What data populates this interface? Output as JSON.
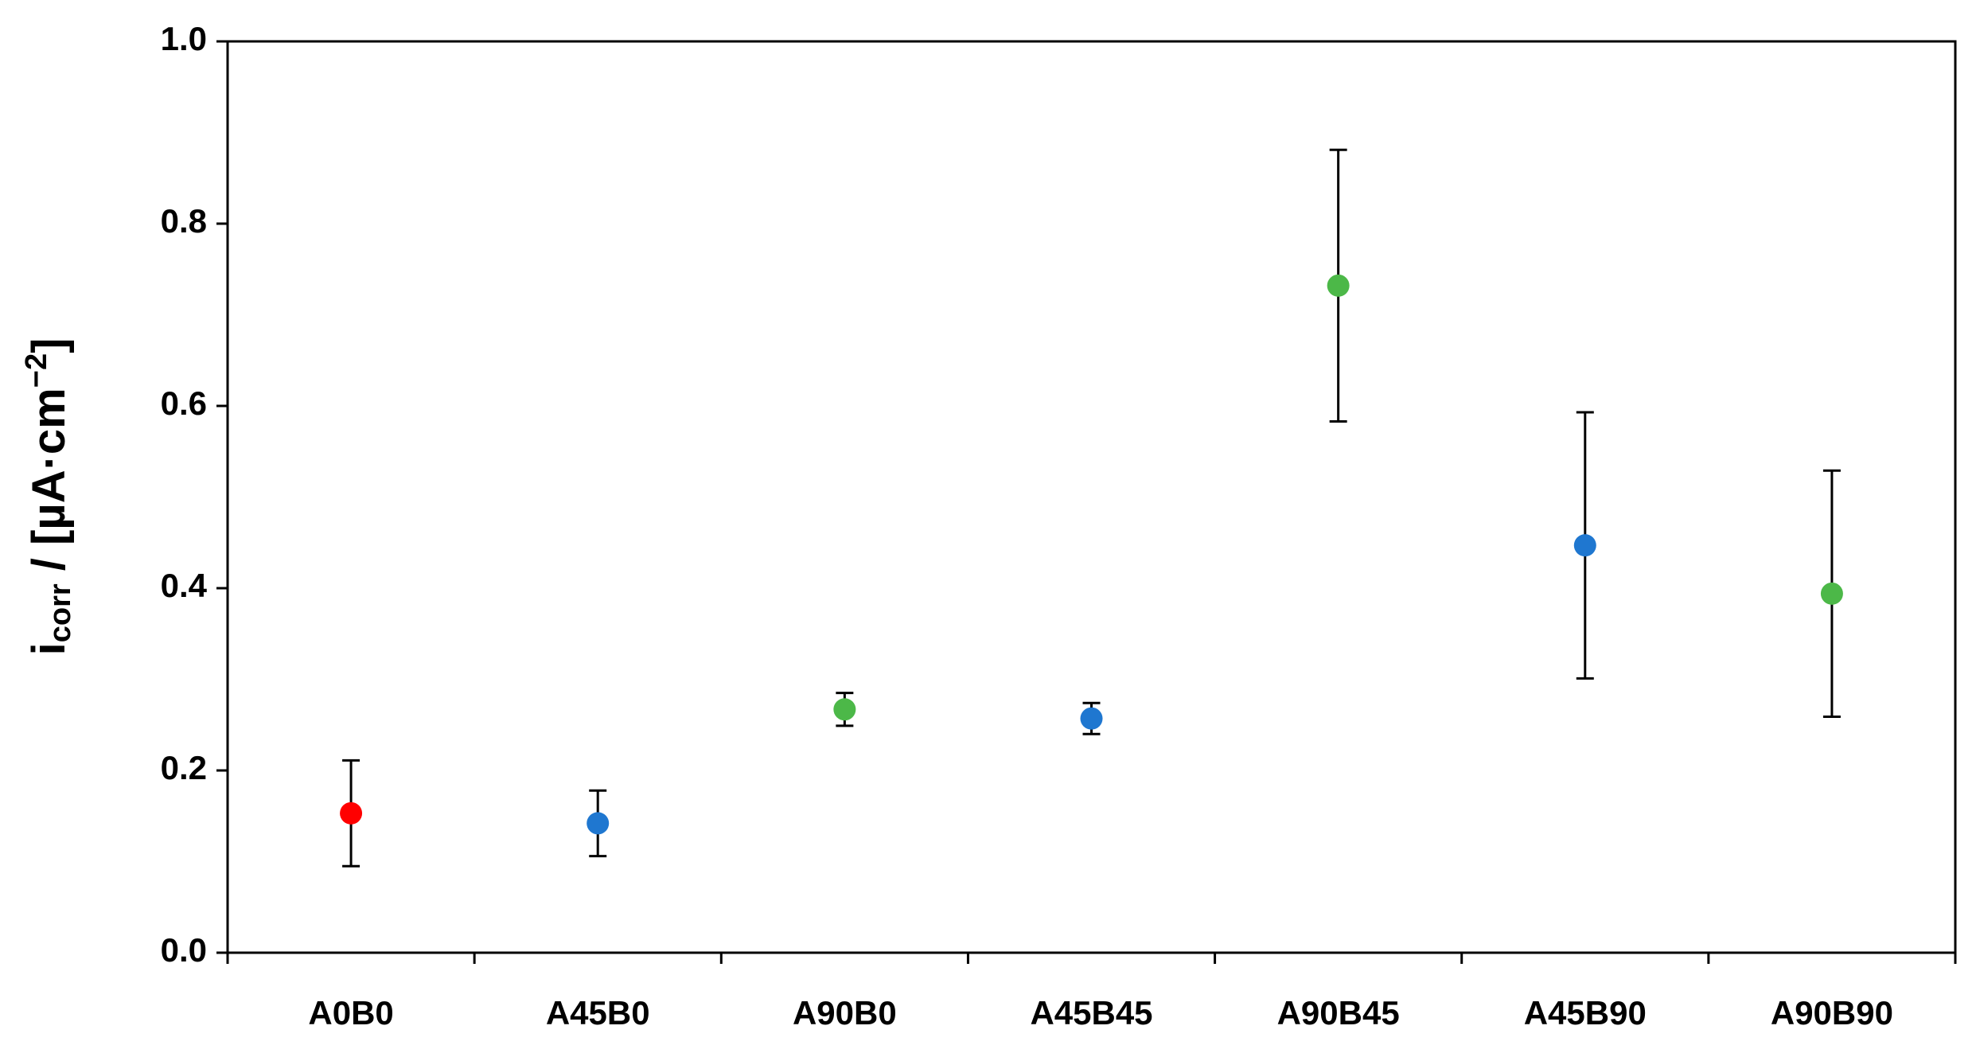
{
  "chart_data": {
    "type": "errorbar",
    "ylabel": {
      "main": "i",
      "sub": "corr",
      "rest": " / [µA·cm",
      "sup": "−2",
      "end": "]"
    },
    "categories": [
      "A0B0",
      "A45B0",
      "A90B0",
      "A45B45",
      "A90B45",
      "A45B90",
      "A90B90"
    ],
    "values": [
      0.153,
      0.142,
      0.267,
      0.257,
      0.732,
      0.447,
      0.394
    ],
    "errors": [
      0.058,
      0.036,
      0.018,
      0.017,
      0.149,
      0.146,
      0.135
    ],
    "colors": [
      "#ff0000",
      "#1f77d0",
      "#4cb848",
      "#1f77d0",
      "#4cb848",
      "#1f77d0",
      "#4cb848"
    ],
    "ylim": [
      0,
      1
    ],
    "yticks": [
      {
        "value": 0,
        "label": "0.0"
      },
      0.2,
      0.4,
      0.6,
      0.8,
      {
        "value": 1,
        "label": "1.0"
      }
    ]
  }
}
